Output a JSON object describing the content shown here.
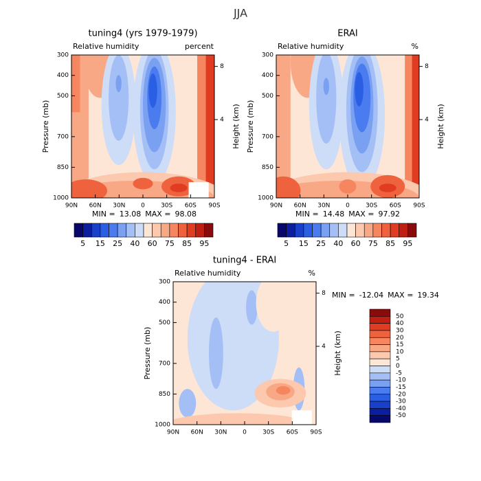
{
  "title": "JJA",
  "chart_data": [
    {
      "type": "contour",
      "title": "tuning4 (yrs 1979-1979)",
      "subtitle_left": "Relative humidity",
      "subtitle_right": "percent",
      "ylabel": "Pressure (mb)",
      "y2label": "Height (km)",
      "xlim": [
        90,
        -90
      ],
      "xticks": [
        {
          "value": 90,
          "label": "90N"
        },
        {
          "value": 60,
          "label": "60N"
        },
        {
          "value": 30,
          "label": "30N"
        },
        0,
        {
          "value": -30,
          "label": "30S"
        },
        {
          "value": -60,
          "label": "60S"
        },
        {
          "value": -90,
          "label": "90S"
        }
      ],
      "ylim": [
        1000,
        300
      ],
      "yticks": [
        300,
        400,
        500,
        700,
        850,
        1000
      ],
      "y2ticks": [
        8,
        4
      ],
      "min_label": "MIN =",
      "min": 13.08,
      "max_label": "MAX =",
      "max": 98.08,
      "colorbar": {
        "orientation": "horizontal",
        "labelled_every": 2,
        "levels": [
          5,
          10,
          15,
          20,
          25,
          30,
          40,
          50,
          60,
          70,
          75,
          80,
          85,
          90,
          95
        ],
        "colors": [
          "#08086b",
          "#0b1f9e",
          "#1840c8",
          "#2a5fe3",
          "#4a7cf0",
          "#7aa0f2",
          "#a4bff5",
          "#cddcf7",
          "#fde6d6",
          "#fcc8ae",
          "#f9a886",
          "#f58660",
          "#ef623e",
          "#e03c22",
          "#bf1e12",
          "#8a0b0b"
        ]
      }
    },
    {
      "type": "contour",
      "title": "ERAI",
      "subtitle_left": "Relative humidity",
      "subtitle_right": "%",
      "ylabel": "Pressure (mb)",
      "y2label": "Height (km)",
      "xlim": [
        90,
        -90
      ],
      "xticks": [
        {
          "value": 90,
          "label": "90N"
        },
        {
          "value": 60,
          "label": "60N"
        },
        {
          "value": 30,
          "label": "30N"
        },
        0,
        {
          "value": -30,
          "label": "30S"
        },
        {
          "value": -60,
          "label": "60S"
        },
        {
          "value": -90,
          "label": "90S"
        }
      ],
      "ylim": [
        1000,
        300
      ],
      "yticks": [
        300,
        400,
        500,
        700,
        850,
        1000
      ],
      "y2ticks": [
        8,
        4
      ],
      "min_label": "MIN =",
      "min": 14.48,
      "max_label": "MAX =",
      "max": 97.92,
      "colorbar": {
        "orientation": "horizontal",
        "labelled_every": 2,
        "levels": [
          5,
          10,
          15,
          20,
          25,
          30,
          40,
          50,
          60,
          70,
          75,
          80,
          85,
          90,
          95
        ],
        "colors": [
          "#08086b",
          "#0b1f9e",
          "#1840c8",
          "#2a5fe3",
          "#4a7cf0",
          "#7aa0f2",
          "#a4bff5",
          "#cddcf7",
          "#fde6d6",
          "#fcc8ae",
          "#f9a886",
          "#f58660",
          "#ef623e",
          "#e03c22",
          "#bf1e12",
          "#8a0b0b"
        ]
      }
    },
    {
      "type": "contour",
      "title": "tuning4 - ERAI",
      "subtitle_left": "Relative humidity",
      "subtitle_right": "%",
      "ylabel": "Pressure (mb)",
      "y2label": "Height (km)",
      "xlim": [
        90,
        -90
      ],
      "xticks": [
        {
          "value": 90,
          "label": "90N"
        },
        {
          "value": 60,
          "label": "60N"
        },
        {
          "value": 30,
          "label": "30N"
        },
        0,
        {
          "value": -30,
          "label": "30S"
        },
        {
          "value": -60,
          "label": "60S"
        },
        {
          "value": -90,
          "label": "90S"
        }
      ],
      "ylim": [
        1000,
        300
      ],
      "yticks": [
        300,
        400,
        500,
        700,
        850,
        1000
      ],
      "y2ticks": [
        8,
        4
      ],
      "min_label": "MIN =",
      "min": -12.04,
      "max_label": "MAX =",
      "max": 19.34,
      "colorbar": {
        "orientation": "vertical",
        "labelled_every": 1,
        "levels": [
          50,
          40,
          30,
          20,
          15,
          10,
          5,
          0,
          -5,
          -10,
          -15,
          -20,
          -30,
          -40,
          -50
        ],
        "colors": [
          "#8a0b0b",
          "#bf1e12",
          "#e03c22",
          "#ef623e",
          "#f58660",
          "#f9a886",
          "#fcc8ae",
          "#fde6d6",
          "#cddcf7",
          "#a4bff5",
          "#7aa0f2",
          "#4a7cf0",
          "#2a5fe3",
          "#1840c8",
          "#0b1f9e",
          "#08086b"
        ]
      }
    }
  ]
}
